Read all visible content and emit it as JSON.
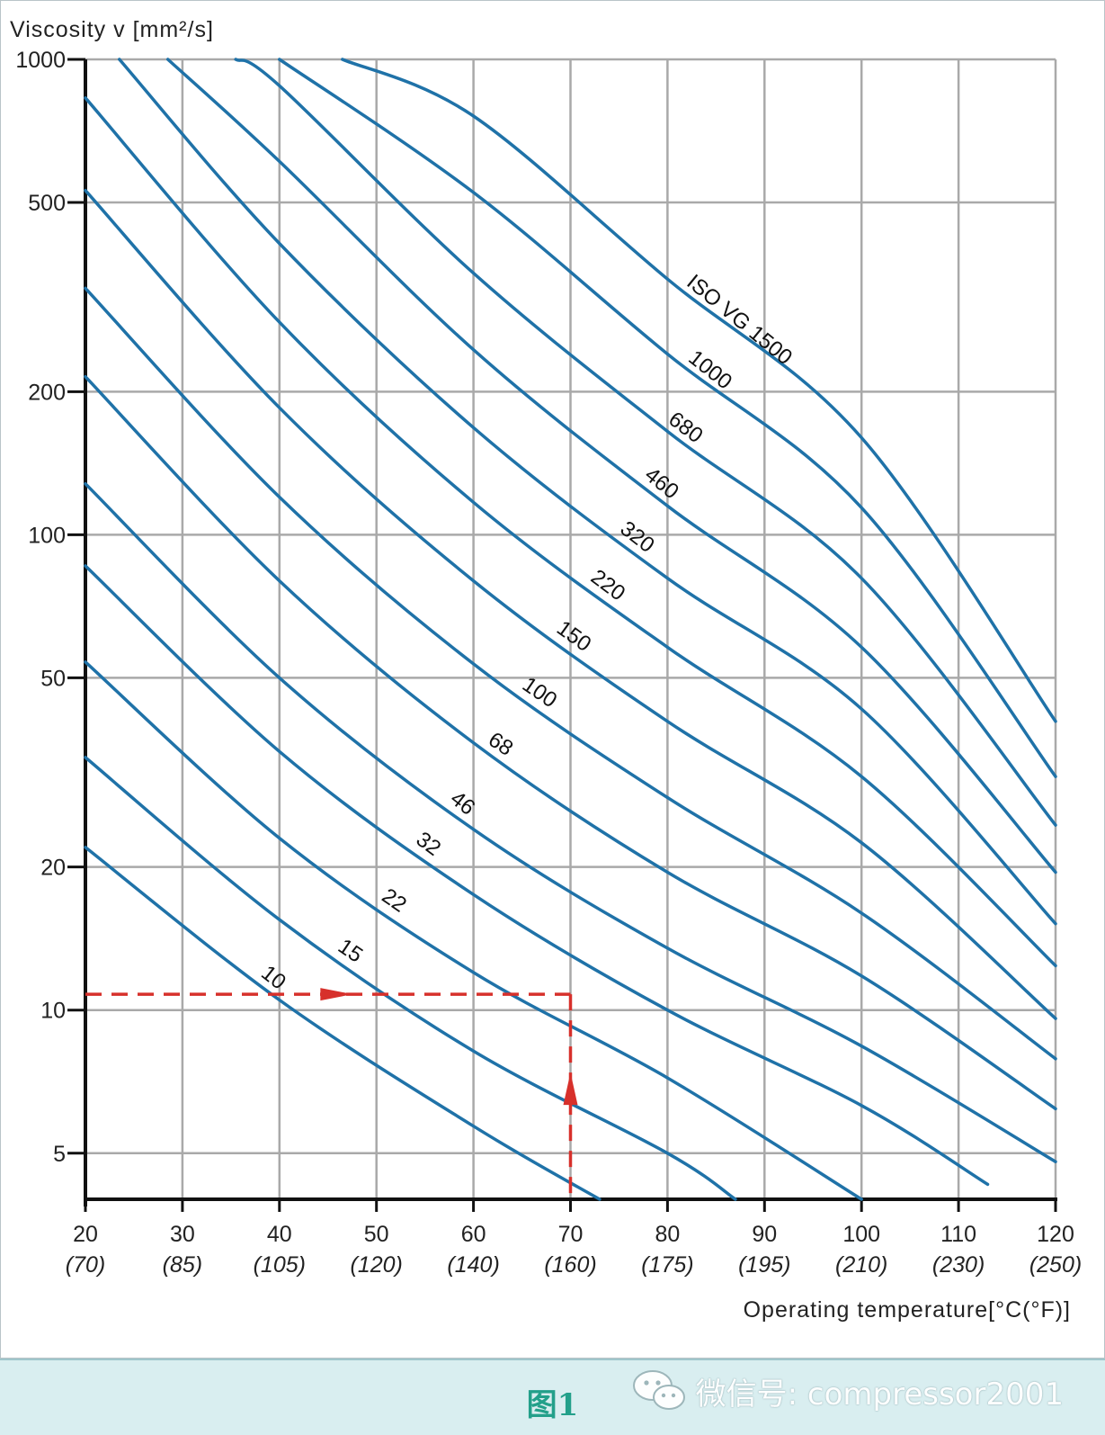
{
  "chart_data": {
    "type": "line",
    "ylabel": "Viscosity v [mm²/s]",
    "xlabel": "Operating temperature[°C(°F)]",
    "xlim": [
      20,
      120
    ],
    "ylim": [
      4,
      1000
    ],
    "y_scale": "log",
    "grid": true,
    "x_ticks": [
      {
        "c": 20,
        "f": "(70)"
      },
      {
        "c": 30,
        "f": "(85)"
      },
      {
        "c": 40,
        "f": "(105)"
      },
      {
        "c": 50,
        "f": "(120)"
      },
      {
        "c": 60,
        "f": "(140)"
      },
      {
        "c": 70,
        "f": "(160)"
      },
      {
        "c": 80,
        "f": "(175)"
      },
      {
        "c": 90,
        "f": "(195)"
      },
      {
        "c": 100,
        "f": "(210)"
      },
      {
        "c": 110,
        "f": "(230)"
      },
      {
        "c": 120,
        "f": "(250)"
      }
    ],
    "y_ticks": [
      1000,
      500,
      200,
      100,
      50,
      20,
      10,
      5
    ],
    "series_color": "#1f72a8",
    "series": [
      {
        "name": "10",
        "label": "10",
        "label_x": 38.5,
        "points": [
          [
            20,
            22
          ],
          [
            40,
            10.5
          ],
          [
            60,
            5.7
          ],
          [
            73,
            4
          ]
        ]
      },
      {
        "name": "15",
        "label": "15",
        "label_x": 46.5,
        "points": [
          [
            20,
            34
          ],
          [
            40,
            15.5
          ],
          [
            60,
            8.2
          ],
          [
            80,
            5.0
          ],
          [
            87,
            4
          ]
        ]
      },
      {
        "name": "22",
        "label": "22",
        "label_x": 51,
        "points": [
          [
            20,
            54
          ],
          [
            40,
            23
          ],
          [
            60,
            12
          ],
          [
            80,
            7.2
          ],
          [
            100,
            4
          ]
        ]
      },
      {
        "name": "32",
        "label": "32",
        "label_x": 54.5,
        "points": [
          [
            20,
            86
          ],
          [
            40,
            35
          ],
          [
            60,
            17.5
          ],
          [
            80,
            10
          ],
          [
            100,
            6.3
          ],
          [
            113,
            4.3
          ]
        ]
      },
      {
        "name": "46",
        "label": "46",
        "label_x": 58,
        "points": [
          [
            20,
            128
          ],
          [
            40,
            50
          ],
          [
            60,
            24
          ],
          [
            80,
            13.5
          ],
          [
            100,
            8.4
          ],
          [
            120,
            4.8
          ]
        ]
      },
      {
        "name": "68",
        "label": "68",
        "label_x": 62,
        "points": [
          [
            20,
            215
          ],
          [
            40,
            80
          ],
          [
            60,
            36.5
          ],
          [
            80,
            19.5
          ],
          [
            100,
            11.8
          ],
          [
            120,
            6.2
          ]
        ]
      },
      {
        "name": "100",
        "label": "100",
        "label_x": 66,
        "points": [
          [
            20,
            330
          ],
          [
            40,
            120
          ],
          [
            60,
            53.5
          ],
          [
            80,
            28
          ],
          [
            100,
            16
          ],
          [
            120,
            7.9
          ]
        ]
      },
      {
        "name": "150",
        "label": "150",
        "label_x": 69.5,
        "points": [
          [
            20,
            530
          ],
          [
            40,
            185
          ],
          [
            60,
            80
          ],
          [
            80,
            40.5
          ],
          [
            100,
            22.5
          ],
          [
            120,
            9.6
          ]
        ]
      },
      {
        "name": "220",
        "label": "220",
        "label_x": 73,
        "points": [
          [
            20,
            830
          ],
          [
            40,
            280
          ],
          [
            60,
            117
          ],
          [
            80,
            58
          ],
          [
            100,
            31
          ],
          [
            120,
            12.4
          ]
        ]
      },
      {
        "name": "320",
        "label": "320",
        "label_x": 76,
        "points": [
          [
            23.5,
            1000
          ],
          [
            40,
            410
          ],
          [
            60,
            168
          ],
          [
            80,
            81
          ],
          [
            100,
            43
          ],
          [
            120,
            15.2
          ]
        ]
      },
      {
        "name": "460",
        "label": "460",
        "label_x": 78.5,
        "points": [
          [
            28.5,
            1000
          ],
          [
            40,
            610
          ],
          [
            60,
            245
          ],
          [
            80,
            115
          ],
          [
            100,
            58
          ],
          [
            120,
            19.5
          ]
        ]
      },
      {
        "name": "680",
        "label": "680",
        "label_x": 81,
        "points": [
          [
            35.5,
            1000
          ],
          [
            40,
            880
          ],
          [
            60,
            355
          ],
          [
            80,
            165
          ],
          [
            100,
            81
          ],
          [
            120,
            24.5
          ]
        ]
      },
      {
        "name": "1000",
        "label": "1000",
        "label_x": 83.5,
        "points": [
          [
            40,
            1000
          ],
          [
            60,
            525
          ],
          [
            80,
            240
          ],
          [
            100,
            114
          ],
          [
            120,
            31
          ]
        ]
      },
      {
        "name": "1500",
        "label": "ISO VG 1500",
        "label_x": 86.5,
        "points": [
          [
            46.5,
            1000
          ],
          [
            60,
            760
          ],
          [
            80,
            345
          ],
          [
            100,
            160
          ],
          [
            120,
            40.5
          ]
        ]
      }
    ],
    "annotation": {
      "type": "dashed-guide",
      "color": "#d7302b",
      "x": 70,
      "y": 10.8,
      "x_start": 20
    }
  },
  "caption": "图1",
  "watermark": "微信号: compressor2001",
  "watermark_icon": "wechat-icon"
}
